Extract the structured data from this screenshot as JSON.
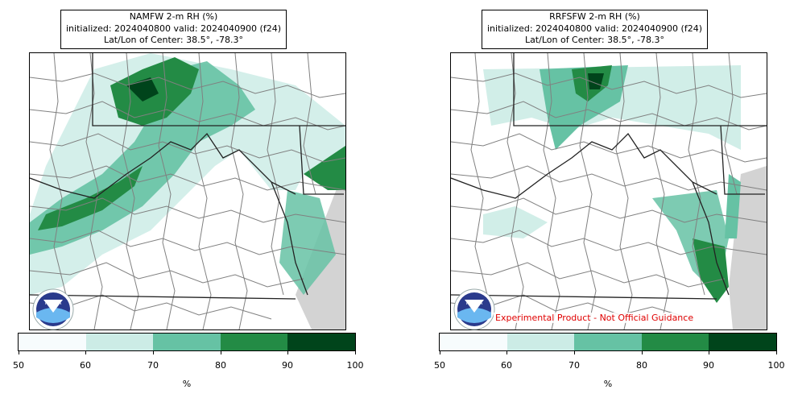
{
  "panels": [
    {
      "title_line1": "NAMFW 2-m RH (%)",
      "title_line2": "initialized: 2024040800 valid: 2024040900 (f24)",
      "title_line3": "Lat/Lon of Center: 38.5°, -78.3°"
    },
    {
      "title_line1": "RRFSFW 2-m RH (%)",
      "title_line2": "initialized: 2024040800 valid: 2024040900 (f24)",
      "title_line3": "Lat/Lon of Center: 38.5°, -78.3°",
      "disclaimer": "Experimental Product - Not Official Guidance"
    }
  ],
  "colorbar": {
    "ticks": [
      "50",
      "60",
      "70",
      "80",
      "90",
      "100"
    ],
    "units": "%",
    "colors": [
      "#f7fcfd",
      "#ccece6",
      "#66c2a4",
      "#238b45",
      "#00441b"
    ]
  },
  "logo": {
    "text": "NOAA",
    "icon": "noaa-logo-icon"
  },
  "map_colors": {
    "ocean": "#d3d3d3",
    "county_lines": "#808080",
    "state_lines": "#222222"
  }
}
